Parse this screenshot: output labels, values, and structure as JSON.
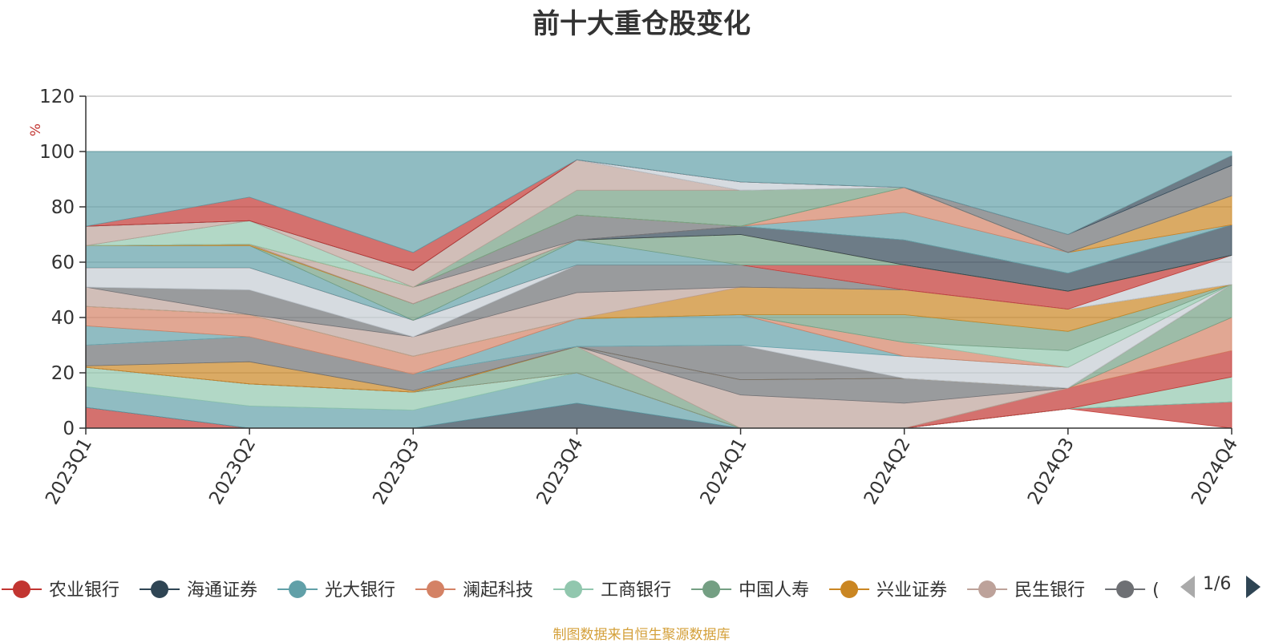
{
  "page": {
    "title": "前十大重仓股变化",
    "source": "制图数据来自恒生聚源数据库"
  },
  "legend": {
    "items": [
      {
        "name": "农业银行",
        "color": "#c23531"
      },
      {
        "name": "海通证券",
        "color": "#2f4554"
      },
      {
        "name": "光大银行",
        "color": "#61a0a8"
      },
      {
        "name": "澜起科技",
        "color": "#d48265"
      },
      {
        "name": "工商银行",
        "color": "#91c7ae"
      },
      {
        "name": "中国人寿",
        "color": "#749f83"
      },
      {
        "name": "兴业证券",
        "color": "#ca8622"
      },
      {
        "name": "民生银行",
        "color": "#bda29a"
      },
      {
        "name": "(",
        "color": "#6e7074"
      }
    ],
    "page_indicator": "1/6"
  },
  "chart_data": {
    "type": "area",
    "title": "前十大重仓股变化",
    "ylabel": "%",
    "xlabel": "",
    "ylim": [
      0,
      120
    ],
    "yticks": [
      0,
      20,
      40,
      60,
      80,
      100,
      120
    ],
    "categories": [
      "2023Q1",
      "2023Q2",
      "2023Q3",
      "2023Q4",
      "2024Q1",
      "2024Q2",
      "2024Q3",
      "2024Q4"
    ],
    "layers": [
      {
        "color": "#c23531",
        "lower": [
          0,
          0,
          0,
          0,
          0,
          0,
          7,
          0
        ],
        "upper": [
          7.5,
          0,
          0,
          0,
          0,
          0,
          7,
          9.5
        ]
      },
      {
        "color": "#2f4554",
        "lower": [
          7.5,
          0,
          0,
          0,
          0,
          0,
          7,
          9.5
        ],
        "upper": [
          7.5,
          0,
          0,
          9,
          0,
          0,
          7,
          9.5
        ]
      },
      {
        "color": "#61a0a8",
        "lower": [
          7.5,
          0,
          0,
          9,
          0,
          0,
          7,
          9.5
        ],
        "upper": [
          15,
          8,
          6.5,
          20,
          0,
          0,
          7,
          9.5
        ]
      },
      {
        "color": "#91c7ae",
        "lower": [
          15,
          8,
          6.5,
          20,
          0,
          0,
          7,
          9.5
        ],
        "upper": [
          22,
          16,
          13,
          20,
          0,
          0,
          7,
          18.5
        ]
      },
      {
        "color": "#c23531",
        "lower": [
          22,
          16,
          13,
          20,
          0,
          0,
          7,
          18.5
        ],
        "upper": [
          22,
          16,
          13,
          20,
          0,
          0,
          14.5,
          28
        ]
      },
      {
        "color": "#d48265",
        "lower": [
          22,
          16,
          13,
          20,
          0,
          0,
          14.5,
          28
        ],
        "upper": [
          22,
          16,
          13,
          20,
          0,
          0,
          14.5,
          40
        ]
      },
      {
        "color": "#749f83",
        "lower": [
          22,
          16,
          13,
          20,
          0,
          0,
          14.5,
          40
        ],
        "upper": [
          22,
          16,
          13,
          29.5,
          0,
          0,
          14.5,
          52
        ]
      },
      {
        "color": "#bda29a",
        "lower": [
          22,
          16,
          13,
          29.5,
          0,
          0,
          14.5,
          52
        ],
        "upper": [
          22,
          16,
          13,
          29.5,
          12,
          9,
          14.5,
          52
        ]
      },
      {
        "color": "#6e7074",
        "lower": [
          22,
          16,
          13,
          29.5,
          12,
          9,
          14.5,
          52
        ],
        "upper": [
          22,
          16,
          13,
          29.5,
          17.5,
          18,
          14.5,
          52
        ]
      },
      {
        "color": "#ca8622",
        "lower": [
          22,
          16,
          13,
          29.5,
          17.5,
          18,
          14.5,
          52
        ],
        "upper": [
          22.5,
          24,
          13.5,
          29.5,
          17.5,
          18,
          14.5,
          52
        ]
      },
      {
        "color": "#6e7074",
        "lower": [
          22.5,
          24,
          13.5,
          29.5,
          17.5,
          18,
          14.5,
          52
        ],
        "upper": [
          30,
          33,
          19.5,
          29.5,
          30,
          18,
          14.5,
          52
        ]
      },
      {
        "color": "#c4ccd3",
        "lower": [
          30,
          33,
          19.5,
          29.5,
          30,
          18,
          14.5,
          52
        ],
        "upper": [
          30,
          33,
          19.5,
          29.5,
          30,
          26,
          22,
          52
        ]
      },
      {
        "color": "#61a0a8",
        "lower": [
          30,
          33,
          19.5,
          29.5,
          30,
          26,
          22,
          52
        ],
        "upper": [
          37,
          33,
          19.5,
          39.5,
          41,
          26,
          22,
          52
        ]
      },
      {
        "color": "#d48265",
        "lower": [
          37,
          33,
          19.5,
          39.5,
          41,
          26,
          22,
          52
        ],
        "upper": [
          44,
          41,
          26,
          39.5,
          41,
          31,
          22,
          52
        ]
      },
      {
        "color": "#91c7ae",
        "lower": [
          44,
          41,
          26,
          39.5,
          41,
          31,
          22,
          52
        ],
        "upper": [
          44,
          41,
          26,
          39.5,
          41,
          31,
          28,
          52
        ]
      },
      {
        "color": "#749f83",
        "lower": [
          44,
          41,
          26,
          39.5,
          41,
          31,
          28,
          52
        ],
        "upper": [
          44,
          41,
          26,
          39.5,
          41,
          41,
          35,
          52
        ]
      },
      {
        "color": "#ca8622",
        "lower": [
          44,
          41,
          26,
          39.5,
          41,
          41,
          35,
          52
        ],
        "upper": [
          44,
          41,
          26,
          39.5,
          51,
          50,
          43,
          52
        ]
      },
      {
        "color": "#bda29a",
        "lower": [
          44,
          41,
          26,
          39.5,
          51,
          50,
          43,
          52
        ],
        "upper": [
          51,
          41,
          33,
          49,
          51,
          50,
          43,
          52
        ]
      },
      {
        "color": "#6e7074",
        "lower": [
          51,
          41,
          33,
          49,
          51,
          50,
          43,
          52
        ],
        "upper": [
          51,
          50,
          33,
          59,
          59,
          50,
          43,
          52
        ]
      },
      {
        "color": "#c4ccd3",
        "lower": [
          51,
          50,
          33,
          59,
          59,
          50,
          43,
          52
        ],
        "upper": [
          58,
          58,
          39,
          59,
          59,
          50,
          43,
          62.5
        ]
      },
      {
        "color": "#c23531",
        "lower": [
          58,
          58,
          39,
          59,
          59,
          50,
          43,
          62.5
        ],
        "upper": [
          58,
          58,
          39,
          59,
          59,
          59,
          49.5,
          62.5
        ]
      },
      {
        "color": "#61a0a8",
        "lower": [
          58,
          58,
          39,
          59,
          59,
          59,
          49.5,
          62.5
        ],
        "upper": [
          66,
          66,
          39,
          68,
          59,
          59,
          49.5,
          62.5
        ]
      },
      {
        "color": "#749f83",
        "lower": [
          66,
          66,
          39,
          68,
          59,
          59,
          49.5,
          62.5
        ],
        "upper": [
          66,
          66,
          45,
          68,
          70,
          59,
          49.5,
          62.5
        ]
      },
      {
        "color": "#ca8622",
        "lower": [
          66,
          66,
          45,
          68,
          70,
          59,
          49.5,
          62.5
        ],
        "upper": [
          66,
          66.5,
          45,
          68,
          70,
          59,
          49.5,
          62.5
        ]
      },
      {
        "color": "#2f4554",
        "lower": [
          66,
          66.5,
          45,
          68,
          70,
          59,
          49.5,
          62.5
        ],
        "upper": [
          66,
          66.5,
          45,
          68,
          73,
          68,
          56,
          73.5
        ]
      },
      {
        "color": "#bda29a",
        "lower": [
          66,
          66.5,
          45,
          68,
          73,
          68,
          56,
          73.5
        ],
        "upper": [
          66,
          66.5,
          51,
          68,
          73,
          68,
          56,
          73.5
        ]
      },
      {
        "color": "#6e7074",
        "lower": [
          66,
          66.5,
          51,
          68,
          73,
          68,
          56,
          73.5
        ],
        "upper": [
          66,
          66.5,
          51,
          77,
          73,
          68,
          56,
          73.5
        ]
      },
      {
        "color": "#61a0a8",
        "lower": [
          66,
          66.5,
          51,
          77,
          73,
          68,
          56,
          73.5
        ],
        "upper": [
          66,
          66.5,
          51,
          77,
          73,
          78,
          63.5,
          73.5
        ]
      },
      {
        "color": "#d48265",
        "lower": [
          66,
          66.5,
          51,
          77,
          73,
          78,
          63.5,
          73.5
        ],
        "upper": [
          66,
          66.5,
          51,
          77,
          73,
          87,
          63.5,
          73.5
        ]
      },
      {
        "color": "#ca8622",
        "lower": [
          66,
          66.5,
          51,
          77,
          73,
          87,
          63.5,
          73.5
        ],
        "upper": [
          66,
          66.5,
          51,
          77,
          73,
          87,
          63.5,
          84
        ]
      },
      {
        "color": "#91c7ae",
        "lower": [
          66,
          66.5,
          51,
          77,
          73,
          87,
          63.5,
          84
        ],
        "upper": [
          66,
          75,
          51,
          77,
          73,
          87,
          63.5,
          84
        ]
      },
      {
        "color": "#749f83",
        "lower": [
          66,
          75,
          51,
          77,
          73,
          87,
          63.5,
          84
        ],
        "upper": [
          66,
          75,
          51,
          86,
          86,
          87,
          63.5,
          84
        ]
      },
      {
        "color": "#bda29a",
        "lower": [
          66,
          75,
          51,
          86,
          86,
          87,
          63.5,
          84
        ],
        "upper": [
          73,
          75,
          57,
          97,
          86,
          87,
          63.5,
          84
        ]
      },
      {
        "color": "#6e7074",
        "lower": [
          73,
          75,
          57,
          97,
          86,
          87,
          63.5,
          84
        ],
        "upper": [
          73,
          75,
          57,
          97,
          86,
          87,
          70,
          95
        ]
      },
      {
        "color": "#c4ccd3",
        "lower": [
          73,
          75,
          57,
          97,
          86,
          87,
          70,
          95
        ],
        "upper": [
          73,
          75,
          57,
          97,
          89,
          87,
          70,
          95
        ]
      },
      {
        "color": "#2f4554",
        "lower": [
          73,
          75,
          57,
          97,
          89,
          87,
          70,
          95
        ],
        "upper": [
          73,
          75,
          57,
          97,
          89,
          87,
          70,
          98.5
        ]
      },
      {
        "color": "#c23531",
        "lower": [
          73,
          75,
          57,
          97,
          89,
          87,
          70,
          98.5
        ],
        "upper": [
          73,
          83.5,
          63.5,
          97,
          89,
          87,
          70,
          98.5
        ]
      },
      {
        "color": "#61a0a8",
        "lower": [
          73,
          83.5,
          63.5,
          97,
          89,
          87,
          70,
          98.5
        ],
        "upper": [
          100,
          100,
          100,
          100,
          100,
          100,
          100,
          100
        ]
      }
    ]
  }
}
